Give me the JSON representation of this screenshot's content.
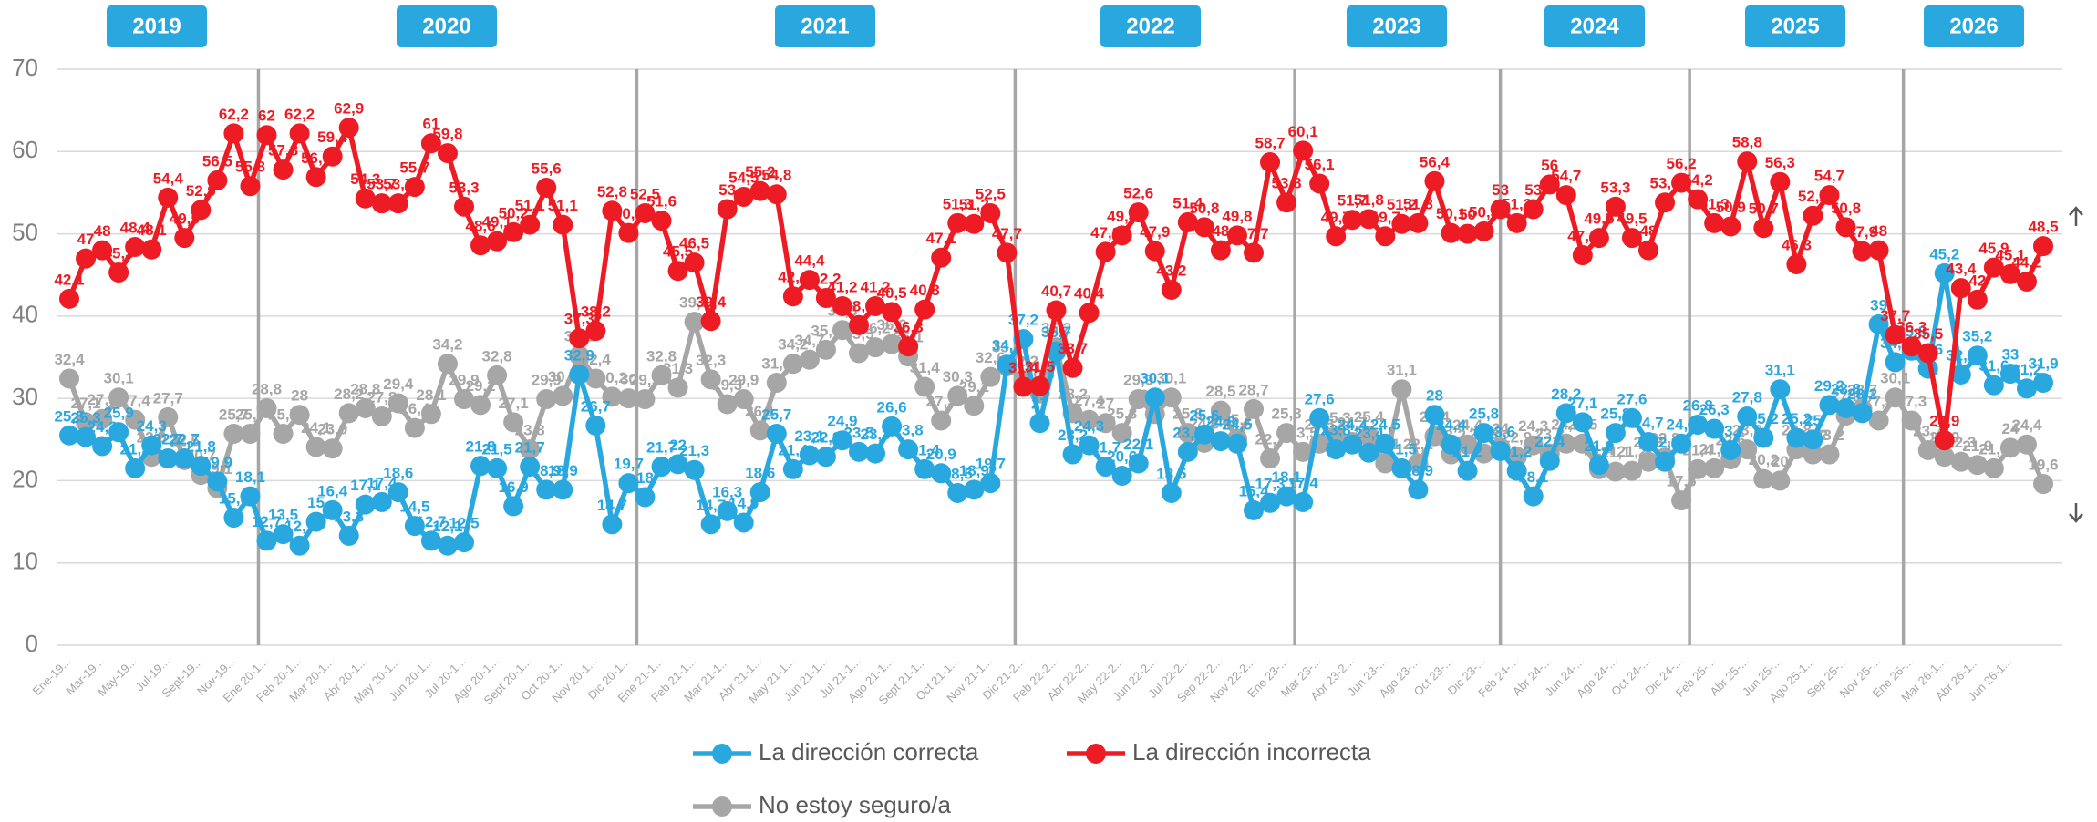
{
  "chart_data": {
    "type": "line",
    "years": [
      "2019",
      "2020",
      "2021",
      "2022",
      "2023",
      "2024",
      "2025",
      "2026"
    ],
    "categories": [
      "Ene-19...",
      null,
      "Mar-19...",
      null,
      "May-19...",
      null,
      "Jul-19...",
      null,
      "Sept-19...",
      null,
      "Nov-19...",
      null,
      "Ene 20-1...",
      null,
      "Feb 20-1...",
      null,
      "Mar 20-1...",
      null,
      "Abr 20-1...",
      null,
      "May 20-1...",
      null,
      "Jun 20-1...",
      null,
      "Jul 20-1...",
      null,
      "Ago 20-1...",
      null,
      "Sept 20-1...",
      null,
      "Oct 20-1...",
      null,
      "Nov 20-1...",
      null,
      "Dic 20-1...",
      null,
      "Ene 21-1...",
      null,
      "Feb 21-1...",
      null,
      "Mar 21-1...",
      null,
      "Abr 21-1...",
      null,
      "May 21-1...",
      null,
      "Jun 21-1...",
      null,
      "Jul 21-1...",
      null,
      "Ago 21-1...",
      null,
      "Sept 21-1...",
      null,
      "Oct 21-1...",
      null,
      "Nov 21-1...",
      null,
      "Dic 21-2...",
      null,
      "Feb 22-2...",
      null,
      "Abr 22-2...",
      null,
      "May 22-2...",
      null,
      "Jun 22-2...",
      null,
      "Jul 22-2...",
      null,
      "Sep 22-2...",
      null,
      "Nov 22-2...",
      null,
      "Ene 23-...",
      null,
      "Mar 23-...",
      null,
      "Abr 23-2...",
      null,
      "Jun 23-...",
      null,
      "Ago 23-...",
      null,
      "Oct 23-...",
      null,
      "Dic 23-...",
      null,
      "Feb 24-...",
      null,
      "Abr 24-...",
      null,
      "Jun 24-...",
      null,
      "Ago 24-...",
      null,
      "Oct 24-...",
      null,
      "Dic 24-...",
      null,
      "Feb 25-...",
      null,
      "Abr 25-...",
      null,
      "Jun 25-...",
      null,
      "Ago 25-1...",
      null,
      "Sep 25-...",
      null,
      "Nov 25-...",
      null,
      "Ene 26-...",
      null,
      "Mar 26-1...",
      null,
      "Abr 26-1...",
      null,
      "Jun 26-1...",
      null,
      null
    ],
    "series": [
      {
        "name": "La dirección correcta",
        "color": "#29a8e0",
        "values": [
          25.5,
          25.3,
          24.2,
          25.9,
          21.5,
          24.3,
          22.7,
          22.7,
          21.8,
          19.9,
          15.5,
          18.1,
          12.7,
          13.5,
          12.1,
          15,
          16.4,
          13.3,
          17.1,
          17.4,
          18.6,
          14.5,
          12.7,
          12.1,
          12.5,
          21.8,
          21.5,
          16.9,
          21.7,
          18.9,
          18.9,
          32.9,
          26.7,
          14.7,
          19.7,
          18,
          21.7,
          22,
          21.3,
          14.7,
          16.3,
          14.9,
          18.6,
          25.7,
          21.4,
          23.1,
          22.9,
          24.9,
          23.5,
          23.3,
          26.6,
          23.8,
          21.4,
          20.9,
          18.5,
          18.9,
          19.7,
          34.1,
          37.2,
          27,
          35.7,
          23.2,
          24.3,
          21.7,
          20.6,
          22.1,
          30.1,
          18.5,
          23.5,
          25.6,
          24.8,
          24.5,
          16.4,
          17.3,
          18.1,
          17.4,
          27.6,
          23.8,
          24.4,
          23.4,
          24.5,
          21.5,
          18.9,
          28,
          24.4,
          21.2,
          25.8,
          23.6,
          21.2,
          18.1,
          22.4,
          28.2,
          27.1,
          21.9,
          25.8,
          27.6,
          24.7,
          22.3,
          24.5,
          26.8,
          26.3,
          23.7,
          27.8,
          25.2,
          31.1,
          25.2,
          25,
          29.2,
          28.8,
          28.2,
          39,
          34.4,
          35.8,
          33.6,
          45.2,
          32.9,
          35.2,
          31.6,
          33,
          31.2,
          31.9
        ],
        "value_labels": [
          "25,5",
          "25,3",
          "24,2",
          "25,9",
          "21,5",
          "24,3",
          "22,7",
          "22,7",
          "21,8",
          "19,9",
          "15,5",
          "18,1",
          "12,7",
          "13,5",
          "12,1",
          "15",
          "16,4",
          "13,3",
          "17,1",
          "17,4",
          "18,6",
          "14,5",
          "12,7",
          "12,1",
          "12,5",
          "21,8",
          "21,5",
          "16,9",
          "21,7",
          "18,9",
          "18,9",
          "32,9",
          "26,7",
          "14,7",
          "19,7",
          "18",
          "21,7",
          "22",
          "21,3",
          "14,7",
          "16,3",
          "14,9",
          "18,6",
          "25,7",
          "21,4",
          "23,1",
          "22,9",
          "24,9",
          "23,5",
          "23,3",
          "26,6",
          "23,8",
          "21,4",
          "20,9",
          "18,5",
          "18,9",
          "19,7",
          "34,1",
          "37,2",
          "27",
          "35,7",
          "23,2",
          "24,3",
          "21,7",
          "20,6",
          "22,1",
          "30,1",
          "18,5",
          "23,5",
          "25,6",
          "24,8",
          "24,5",
          "16,4",
          "17,3",
          "18,1",
          "17,4",
          "27,6",
          "23,8",
          "24,4",
          "23,4",
          "24,5",
          "21,5",
          "18,9",
          "28",
          "24,4",
          "21,2",
          "25,8",
          "23,6",
          "21,2",
          "18,1",
          "22,4",
          "28,2",
          "27,1",
          "21,9",
          "25,8",
          "27,6",
          "24,7",
          "22,3",
          "24,5",
          "26,8",
          "26,3",
          "23,7",
          "27,8",
          "25,2",
          "31,1",
          "25,2",
          "25",
          "29,2",
          "28,8",
          "28,2",
          "39",
          "34,4",
          "35,8",
          "33,6",
          "45,2",
          "32,9",
          "35,2",
          "31,6",
          "33",
          "31,2",
          "31,9"
        ]
      },
      {
        "name": "La dirección incorrecta",
        "color": "#ed1c24",
        "values": [
          42.1,
          47,
          48,
          45.3,
          48.4,
          48.1,
          54.4,
          49.5,
          52.9,
          56.5,
          62.2,
          55.8,
          62,
          57.8,
          62.2,
          56.9,
          59.4,
          62.9,
          54.3,
          53.7,
          53.7,
          55.7,
          61,
          59.8,
          53.3,
          48.6,
          49.1,
          50.2,
          51.1,
          55.6,
          51.1,
          37.3,
          38.2,
          52.8,
          50.1,
          52.5,
          51.6,
          45.5,
          46.5,
          39.4,
          53,
          54.5,
          55.2,
          54.8,
          42.4,
          44.4,
          42.2,
          41.2,
          38.9,
          41.2,
          40.5,
          36.3,
          40.8,
          47.1,
          51.3,
          51.2,
          52.5,
          47.7,
          31.4,
          31.5,
          40.7,
          33.7,
          40.4,
          47.8,
          49.8,
          52.6,
          47.9,
          43.2,
          51.4,
          50.8,
          48,
          49.8,
          47.7,
          58.7,
          53.8,
          60.1,
          56.1,
          49.7,
          51.7,
          51.8,
          49.7,
          51.2,
          51.3,
          56.4,
          50.1,
          50,
          50.3,
          53,
          51.3,
          53,
          56,
          54.7,
          47.4,
          49.5,
          53.3,
          49.5,
          48,
          53.8,
          56.2,
          54.2,
          51.3,
          50.9,
          58.8,
          50.7,
          56.3,
          46.3,
          52.2,
          54.7,
          50.8,
          47.9,
          48,
          37.7,
          36.3,
          35.5,
          24.9,
          43.4,
          42,
          45.9,
          45.1,
          44.2,
          48.5
        ],
        "value_labels": [
          "42,1",
          "47",
          "48",
          "45,3",
          "48,4",
          "48,1",
          "54,4",
          "49,5",
          "52,9",
          "56,5",
          "62,2",
          "55,8",
          "62",
          "57,8",
          "62,2",
          "56,9",
          "59,4",
          "62,9",
          "54,3",
          "53,7",
          "53,7",
          "55,7",
          "61",
          "59,8",
          "53,3",
          "48,6",
          "49,1",
          "50,2",
          "51,1",
          "55,6",
          "51,1",
          "37,3",
          "38,2",
          "52,8",
          "50,1",
          "52,5",
          "51,6",
          "45,5",
          "46,5",
          "39,4",
          "53",
          "54,5",
          "55,2",
          "54,8",
          "42,4",
          "44,4",
          "42,2",
          "41,2",
          "38,9",
          "41,2",
          "40,5",
          "36,3",
          "40,8",
          "47,1",
          "51,3",
          "51,2",
          "52,5",
          "47,7",
          "31,4",
          "31,5",
          "40,7",
          "33,7",
          "40,4",
          "47,8",
          "49,8",
          "52,6",
          "47,9",
          "43,2",
          "51,4",
          "50,8",
          "48",
          "49,8",
          "47,7",
          "58,7",
          "53,8",
          "60,1",
          "56,1",
          "49,7",
          "51,7",
          "51,8",
          "49,7",
          "51,2",
          "51,3",
          "56,4",
          "50,1",
          "50",
          "50,3",
          "53",
          "51,3",
          "53",
          "56",
          "54,7",
          "47,4",
          "49,5",
          "53,3",
          "49,5",
          "48",
          "53,8",
          "56,2",
          "54,2",
          "51,3",
          "50,9",
          "58,8",
          "50,7",
          "56,3",
          "46,3",
          "52,2",
          "54,7",
          "50,8",
          "47,9",
          "48",
          "37,7",
          "36,3",
          "35,5",
          "24,9",
          "43,4",
          "42",
          "45,9",
          "45,1",
          "44,2",
          "48,5"
        ]
      },
      {
        "name": "No estoy seguro/a",
        "color": "#a6a6a6",
        "values": [
          32.4,
          27.1,
          27.5,
          30.1,
          27.4,
          22.9,
          27.7,
          22.5,
          20.7,
          19.1,
          25.7,
          25.7,
          28.8,
          25.7,
          28,
          24.1,
          23.9,
          28.2,
          28.8,
          27.8,
          29.4,
          26.4,
          28.1,
          34.2,
          29.9,
          29.2,
          32.8,
          27.1,
          23.8,
          29.9,
          30.3,
          35.2,
          32.4,
          30.2,
          30,
          29.9,
          32.8,
          31.3,
          39.3,
          32.3,
          29.3,
          29.9,
          26.1,
          31.9,
          34.2,
          34.7,
          35.9,
          38.3,
          35.5,
          36.2,
          36.6,
          35.1,
          31.4,
          27.3,
          30.3,
          29.1,
          32.6,
          33.9,
          32.2,
          30.6,
          36.2,
          28.2,
          27.4,
          27,
          25.8,
          29.9,
          28.1,
          30.1,
          25.8,
          24.6,
          28.5,
          25.1,
          28.7,
          22.7,
          25.8,
          23.5,
          24.5,
          25.3,
          24.7,
          25.4,
          22.1,
          31.1,
          22.1,
          25.4,
          23.2,
          24.4,
          23.3,
          24,
          22.9,
          24.3,
          23.3,
          24.5,
          24.5,
          21.4,
          21.1,
          21.2,
          22.3,
          22.8,
          17.6,
          21.4,
          21.5,
          22.6,
          23.8,
          20.2,
          20,
          23.8,
          23.2,
          23.2,
          27.9,
          28.7,
          27.3,
          30.1,
          27.3,
          23.7,
          22.9,
          22.3,
          21.9,
          21.5,
          24,
          24.4,
          19.6
        ],
        "value_labels": [
          "32,4",
          "27,1",
          "27,5",
          "30,1",
          "27,4",
          "22,9",
          "27,7",
          "22,5",
          "20,7",
          "19,1",
          "25,7",
          "25,7",
          "28,8",
          "25,7",
          "28",
          "24,1",
          "23,9",
          "28,2",
          "28,8",
          "27,8",
          "29,4",
          "26,4",
          "28,1",
          "34,2",
          "29,9",
          "29,2",
          "32,8",
          "27,1",
          "23,8",
          "29,9",
          "30,3",
          "35,2",
          "32,4",
          "30,2",
          "30",
          "29,9",
          "32,8",
          "31,3",
          "39,3",
          "32,3",
          "29,3",
          "29,9",
          "26,1",
          "31,9",
          "34,2",
          "34,7",
          "35,9",
          "38,3",
          "35,5",
          "36,2",
          "36,6",
          "35,1",
          "31,4",
          "27,3",
          "30,3",
          "29,1",
          "32,6",
          "33,9",
          "32,2",
          "30,6",
          "36,2",
          "28,2",
          "27,4",
          "27",
          "25,8",
          "29,9",
          "28,1",
          "30,1",
          "25,8",
          "24,6",
          "28,5",
          "25,1",
          "28,7",
          "22,7",
          "25,8",
          "23,5",
          "24,5",
          "25,3",
          "24,7",
          "25,4",
          "22,1",
          "31,1",
          "22,1",
          "25,4",
          "23,2",
          "24,4",
          "23,3",
          "24",
          "22,9",
          "24,3",
          "23,3",
          "24,5",
          "24,5",
          "21,4",
          "21,1",
          "21,2",
          "22,3",
          "22,8",
          "17,6",
          "21,4",
          "21,5",
          "22,6",
          "23,8",
          "20,2",
          "20",
          "23,8",
          "23,2",
          "23,2",
          "27,9",
          "28,7",
          "27,3",
          "30,1",
          "27,3",
          "23,7",
          "22,9",
          "22,3",
          "21,9",
          "21,5",
          "24",
          "24,4",
          "19,6"
        ]
      }
    ],
    "ylim": [
      0,
      70
    ],
    "yticks": [
      0,
      10,
      20,
      30,
      40,
      50,
      60,
      70
    ],
    "grid": true,
    "legend": "bottom"
  }
}
